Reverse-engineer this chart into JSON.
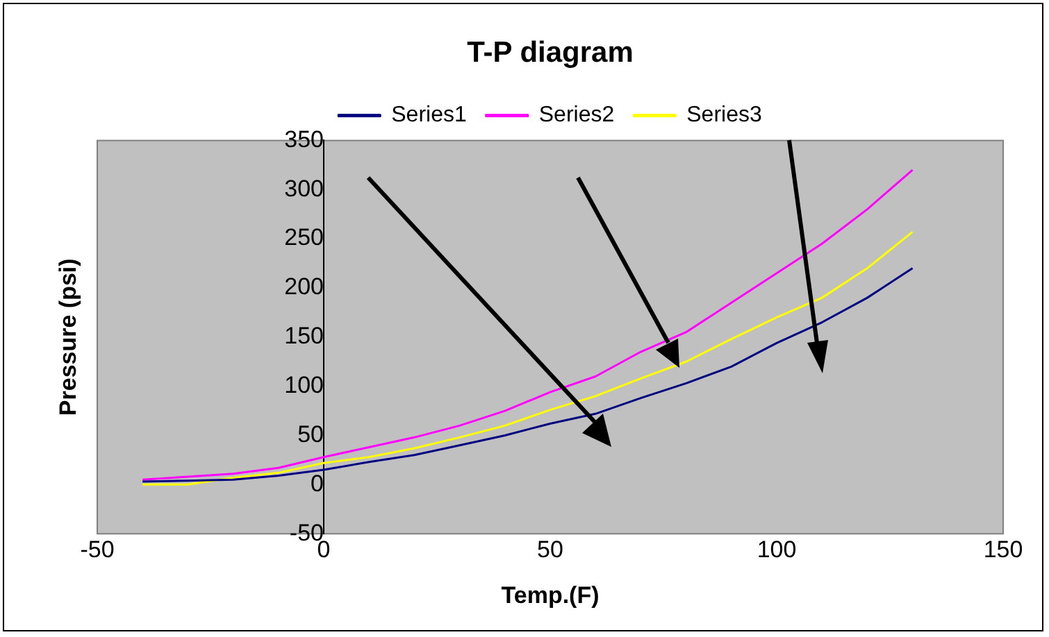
{
  "chart_data": {
    "type": "line",
    "title": "T-P diagram",
    "xlabel": "Temp.(F)",
    "ylabel": "Pressure (psi)",
    "x": [
      -40,
      -30,
      -20,
      -10,
      0,
      10,
      20,
      30,
      40,
      50,
      60,
      70,
      80,
      90,
      100,
      110,
      120,
      130
    ],
    "series": [
      {
        "name": "Series1",
        "color": "#000080",
        "values": [
          3,
          4,
          5,
          9,
          15,
          23,
          30,
          40,
          50,
          62,
          72,
          88,
          103,
          120,
          144,
          165,
          190,
          220
        ]
      },
      {
        "name": "Series2",
        "color": "#ff00ff",
        "values": [
          5,
          8,
          11,
          17,
          28,
          38,
          48,
          60,
          75,
          94,
          110,
          135,
          155,
          185,
          215,
          245,
          280,
          320
        ]
      },
      {
        "name": "Series3",
        "color": "#ffff00",
        "values": [
          0,
          0,
          7,
          12,
          22,
          28,
          37,
          48,
          60,
          76,
          90,
          108,
          125,
          148,
          170,
          190,
          220,
          257
        ]
      }
    ],
    "xlim": [
      -50,
      150
    ],
    "xticks": [
      -50,
      0,
      50,
      100,
      150
    ],
    "ylim": [
      -50,
      350
    ],
    "yticks": [
      -50,
      0,
      50,
      100,
      150,
      200,
      250,
      300,
      350
    ],
    "grid": false,
    "legend": "top",
    "marker": "none",
    "line_style": "solid"
  }
}
